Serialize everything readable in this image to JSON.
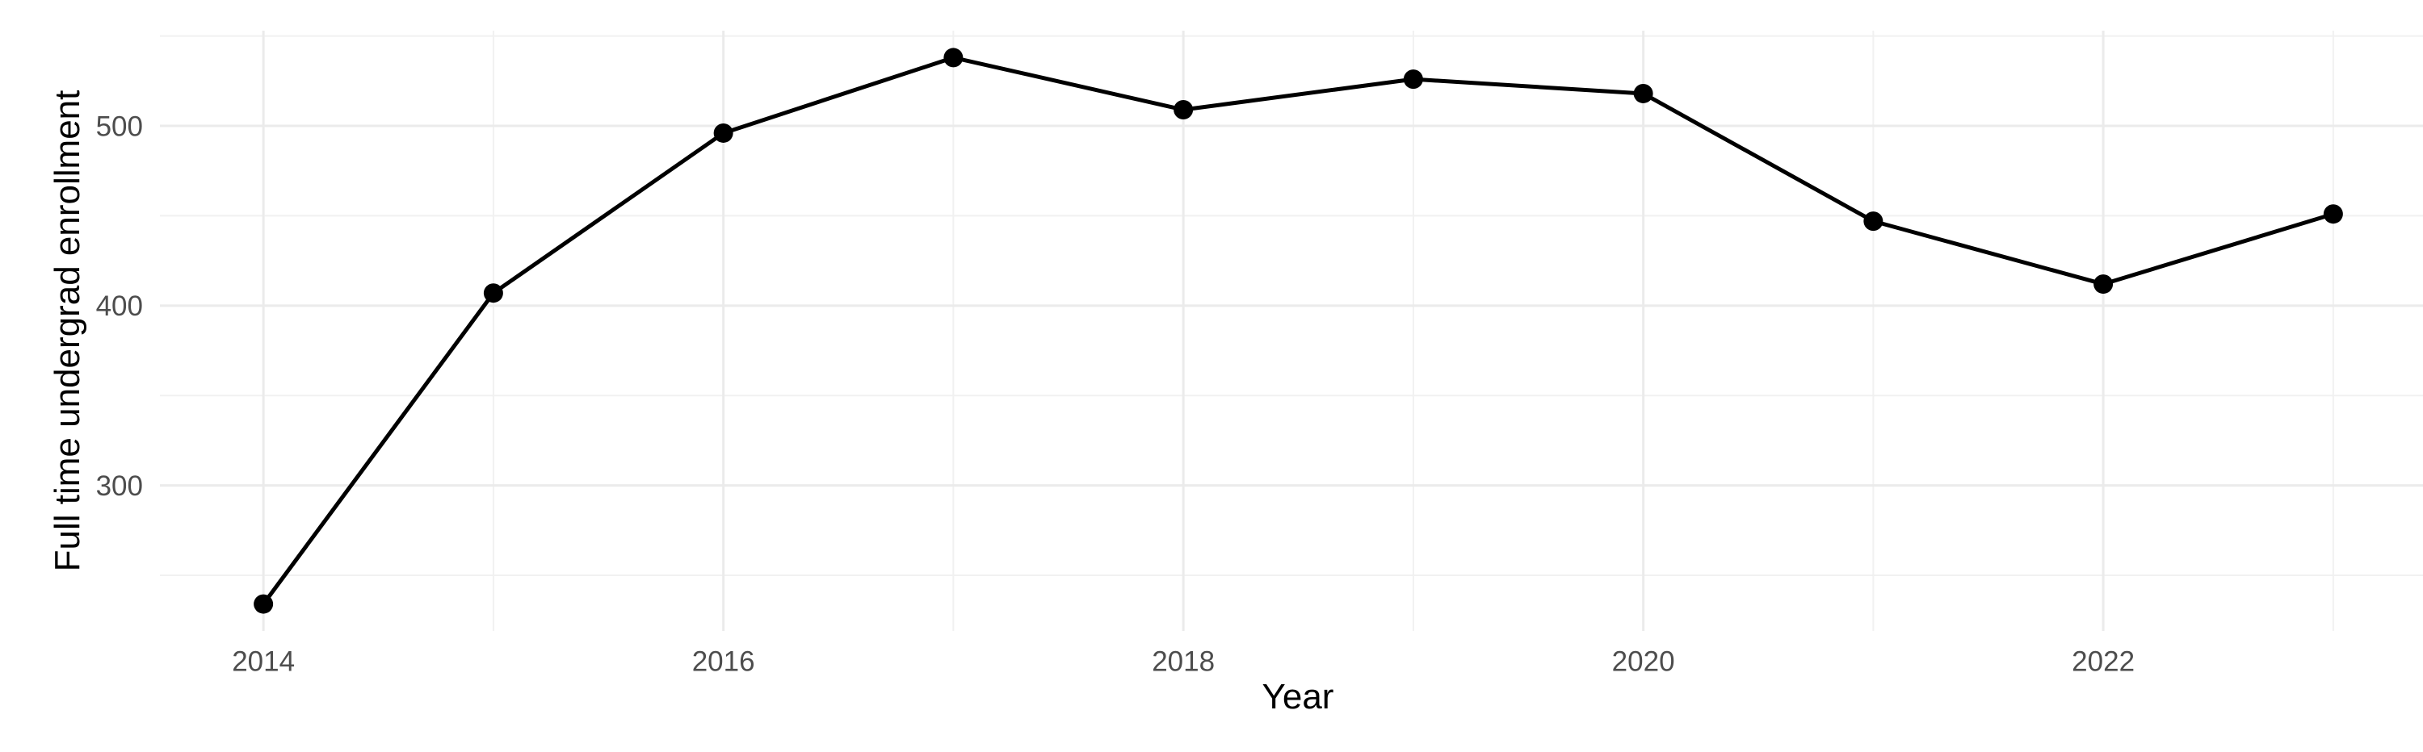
{
  "chart_data": {
    "type": "line",
    "xlabel": "Year",
    "ylabel": "Full time undergrad enrollment",
    "x": [
      2014,
      2015,
      2016,
      2017,
      2018,
      2019,
      2020,
      2021,
      2022,
      2023
    ],
    "values": [
      234,
      407,
      496,
      538,
      509,
      526,
      518,
      447,
      412,
      451
    ],
    "xlim": [
      2013.55,
      2023.45
    ],
    "ylim": [
      219,
      553
    ],
    "x_major_ticks": [
      2014,
      2016,
      2018,
      2020,
      2022
    ],
    "x_minor_ticks": [
      2015,
      2017,
      2019,
      2021,
      2023
    ],
    "y_major_ticks": [
      300,
      400,
      500
    ],
    "y_minor_ticks": [
      250,
      350,
      450,
      550
    ],
    "grid": "major+minor",
    "legend_position": "none",
    "point_marker": "filled-circle",
    "colors": {
      "line": "#000000",
      "point": "#000000",
      "grid_major": "#ebebeb",
      "grid_minor": "#f1f1f1",
      "tick_text": "#4d4d4d",
      "axis_title": "#000000",
      "background": "#ffffff"
    }
  }
}
